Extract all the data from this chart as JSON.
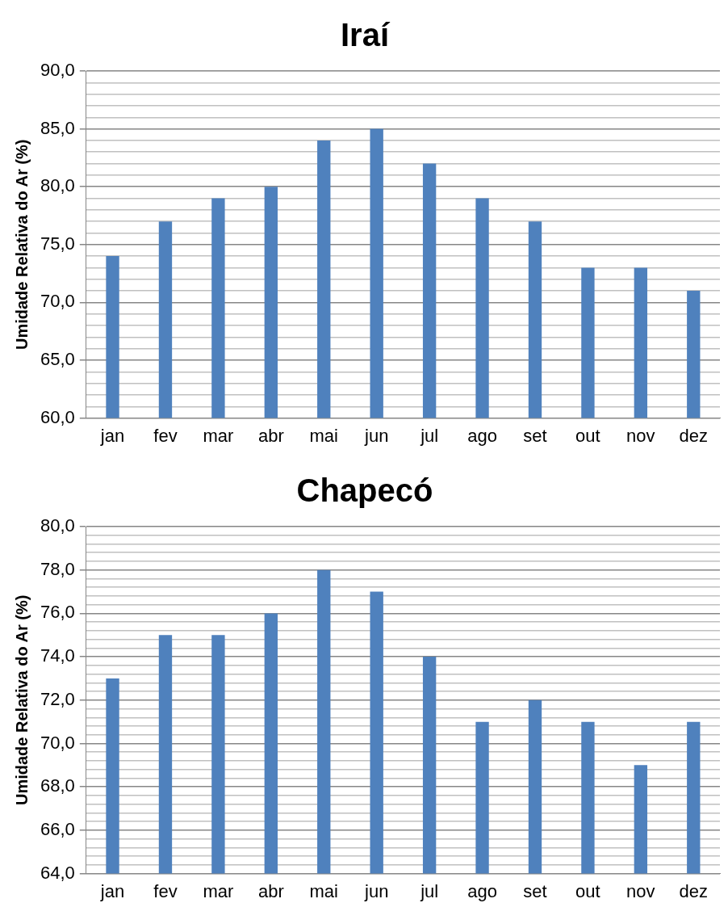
{
  "chart_data": [
    {
      "type": "bar",
      "title": "Iraí",
      "ylabel": "Umidade Relativa do Ar (%)",
      "categories": [
        "jan",
        "fev",
        "mar",
        "abr",
        "mai",
        "jun",
        "jul",
        "ago",
        "set",
        "out",
        "nov",
        "dez"
      ],
      "values": [
        74,
        77,
        79,
        80,
        84,
        85,
        82,
        79,
        77,
        73,
        73,
        71
      ],
      "color": "#4f81bd",
      "ylim": [
        60,
        90
      ],
      "grid": "y",
      "yticks": [
        {
          "value": 60,
          "label": "60,0"
        },
        {
          "value": 61,
          "label": null
        },
        {
          "value": 62,
          "label": null
        },
        {
          "value": 63,
          "label": null
        },
        {
          "value": 64,
          "label": null
        },
        {
          "value": 65,
          "label": "65,0"
        },
        {
          "value": 66,
          "label": null
        },
        {
          "value": 67,
          "label": null
        },
        {
          "value": 68,
          "label": null
        },
        {
          "value": 69,
          "label": null
        },
        {
          "value": 70,
          "label": "70,0"
        },
        {
          "value": 71,
          "label": null
        },
        {
          "value": 72,
          "label": null
        },
        {
          "value": 73,
          "label": null
        },
        {
          "value": 74,
          "label": null
        },
        {
          "value": 75,
          "label": "75,0"
        },
        {
          "value": 76,
          "label": null
        },
        {
          "value": 77,
          "label": null
        },
        {
          "value": 78,
          "label": null
        },
        {
          "value": 79,
          "label": null
        },
        {
          "value": 80,
          "label": "80,0"
        },
        {
          "value": 81,
          "label": null
        },
        {
          "value": 82,
          "label": null
        },
        {
          "value": 83,
          "label": null
        },
        {
          "value": 84,
          "label": null
        },
        {
          "value": 85,
          "label": "85,0"
        },
        {
          "value": 86,
          "label": null
        },
        {
          "value": 87,
          "label": null
        },
        {
          "value": 88,
          "label": null
        },
        {
          "value": 89,
          "label": null
        },
        {
          "value": 90,
          "label": "90,0"
        }
      ]
    },
    {
      "type": "bar",
      "title": "Chapecó",
      "ylabel": "Umidade Relativa do Ar (%)",
      "categories": [
        "jan",
        "fev",
        "mar",
        "abr",
        "mai",
        "jun",
        "jul",
        "ago",
        "set",
        "out",
        "nov",
        "dez"
      ],
      "values": [
        73,
        75,
        75,
        76,
        78,
        77,
        74,
        71,
        72,
        71,
        69,
        71
      ],
      "color": "#4f81bd",
      "ylim": [
        64,
        80
      ],
      "grid": "y",
      "yticks": [
        {
          "value": 64,
          "label": "64,0"
        },
        {
          "value": 64.4,
          "label": null
        },
        {
          "value": 64.8,
          "label": null
        },
        {
          "value": 65.2,
          "label": null
        },
        {
          "value": 65.6,
          "label": null
        },
        {
          "value": 66,
          "label": "66,0"
        },
        {
          "value": 66.4,
          "label": null
        },
        {
          "value": 66.8,
          "label": null
        },
        {
          "value": 67.2,
          "label": null
        },
        {
          "value": 67.6,
          "label": null
        },
        {
          "value": 68,
          "label": "68,0"
        },
        {
          "value": 68.4,
          "label": null
        },
        {
          "value": 68.8,
          "label": null
        },
        {
          "value": 69.2,
          "label": null
        },
        {
          "value": 69.6,
          "label": null
        },
        {
          "value": 70,
          "label": "70,0"
        },
        {
          "value": 70.4,
          "label": null
        },
        {
          "value": 70.8,
          "label": null
        },
        {
          "value": 71.2,
          "label": null
        },
        {
          "value": 71.6,
          "label": null
        },
        {
          "value": 72,
          "label": "72,0"
        },
        {
          "value": 72.4,
          "label": null
        },
        {
          "value": 72.8,
          "label": null
        },
        {
          "value": 73.2,
          "label": null
        },
        {
          "value": 73.6,
          "label": null
        },
        {
          "value": 74,
          "label": "74,0"
        },
        {
          "value": 74.4,
          "label": null
        },
        {
          "value": 74.8,
          "label": null
        },
        {
          "value": 75.2,
          "label": null
        },
        {
          "value": 75.6,
          "label": null
        },
        {
          "value": 76,
          "label": "76,0"
        },
        {
          "value": 76.4,
          "label": null
        },
        {
          "value": 76.8,
          "label": null
        },
        {
          "value": 77.2,
          "label": null
        },
        {
          "value": 77.6,
          "label": null
        },
        {
          "value": 78,
          "label": "78,0"
        },
        {
          "value": 78.4,
          "label": null
        },
        {
          "value": 78.8,
          "label": null
        },
        {
          "value": 79.2,
          "label": null
        },
        {
          "value": 79.6,
          "label": null
        },
        {
          "value": 80,
          "label": "80,0"
        }
      ]
    }
  ]
}
